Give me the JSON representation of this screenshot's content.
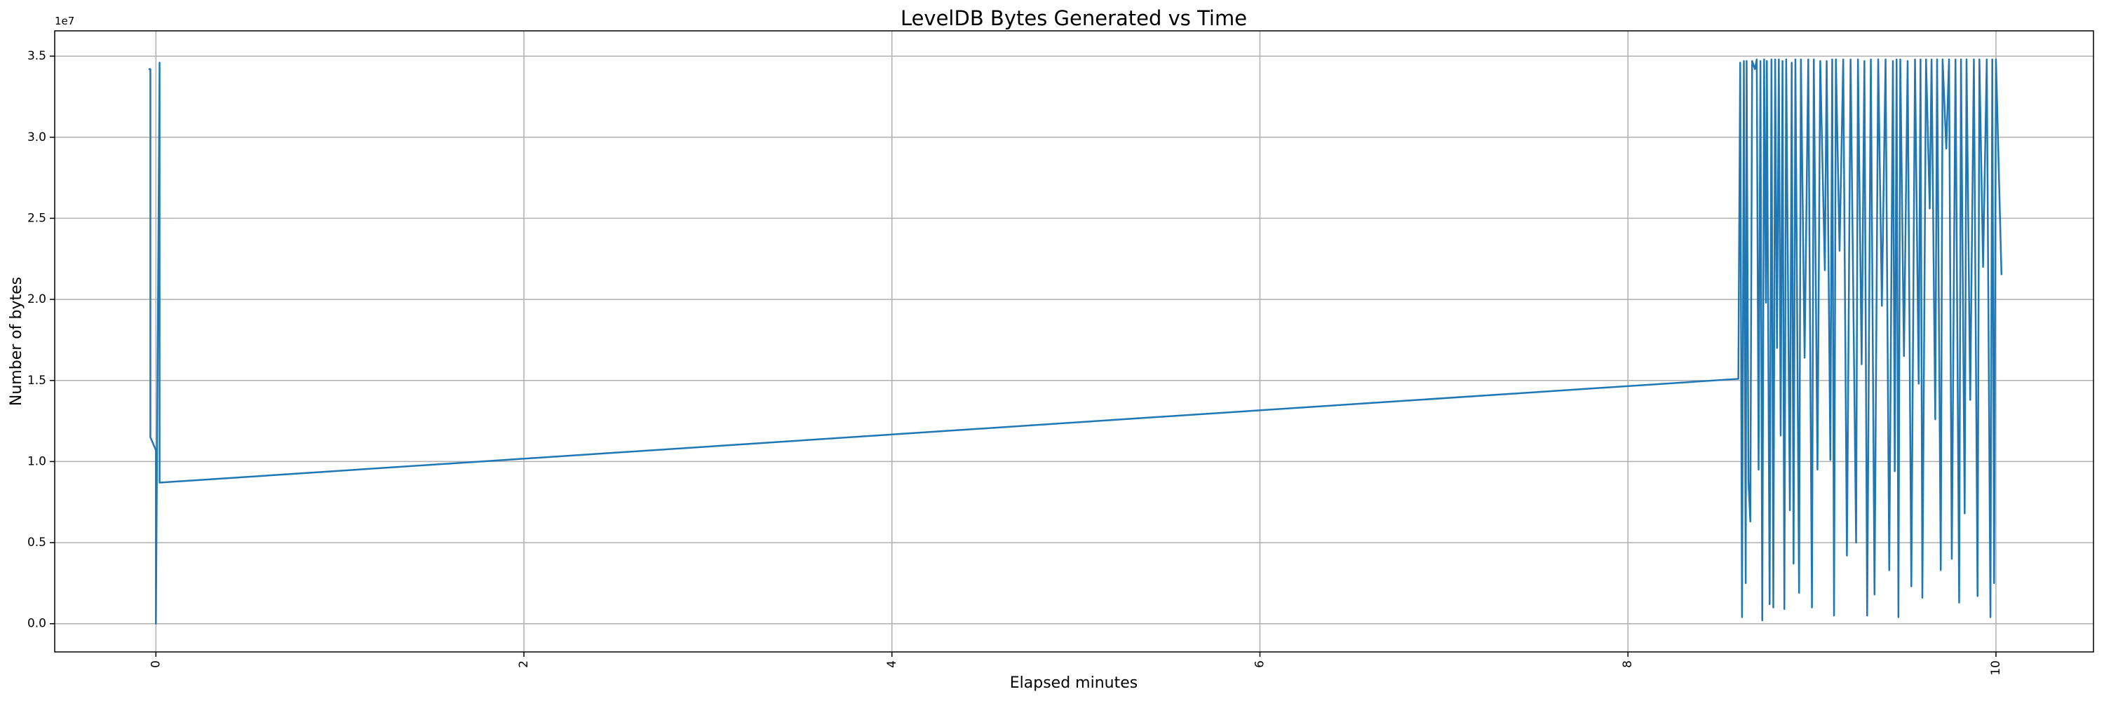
{
  "chart_data": {
    "type": "line",
    "title": "LevelDB Bytes Generated vs Time",
    "x_label": "Elapsed minutes",
    "y_label": "Number of bytes",
    "y_offset_label": "1e7",
    "color": "#1f77b4",
    "grid": true,
    "xlim": [
      -0.55,
      10.53
    ],
    "ylim": [
      -1740000,
      36560000
    ],
    "xticks": [
      0,
      2,
      4,
      6,
      8,
      10
    ],
    "yticks": [
      {
        "value": 0,
        "label": "0.0"
      },
      {
        "value": 5000000,
        "label": "0.5"
      },
      {
        "value": 10000000,
        "label": "1.0"
      },
      {
        "value": 15000000,
        "label": "1.5"
      },
      {
        "value": 20000000,
        "label": "2.0"
      },
      {
        "value": 25000000,
        "label": "2.5"
      },
      {
        "value": 30000000,
        "label": "3.0"
      },
      {
        "value": 35000000,
        "label": "3.5"
      }
    ],
    "x": [
      -0.04,
      -0.03,
      -0.03,
      0.0,
      0.0,
      0.02,
      0.02,
      8.6,
      8.61,
      8.62,
      8.63,
      8.64,
      8.645,
      8.655,
      8.665,
      8.675,
      8.69,
      8.7,
      8.71,
      8.72,
      8.73,
      8.74,
      8.75,
      8.755,
      8.77,
      8.78,
      8.79,
      8.8,
      8.81,
      8.82,
      8.83,
      8.84,
      8.85,
      8.86,
      8.88,
      8.89,
      8.9,
      8.91,
      8.93,
      8.94,
      8.96,
      8.98,
      9.0,
      9.01,
      9.03,
      9.045,
      9.07,
      9.08,
      9.1,
      9.11,
      9.12,
      9.13,
      9.15,
      9.17,
      9.19,
      9.21,
      9.24,
      9.25,
      9.27,
      9.285,
      9.3,
      9.32,
      9.34,
      9.36,
      9.38,
      9.4,
      9.42,
      9.44,
      9.45,
      9.46,
      9.47,
      9.48,
      9.5,
      9.52,
      9.54,
      9.56,
      9.58,
      9.59,
      9.6,
      9.62,
      9.64,
      9.65,
      9.67,
      9.68,
      9.7,
      9.71,
      9.73,
      9.745,
      9.76,
      9.78,
      9.8,
      9.81,
      9.83,
      9.84,
      9.86,
      9.88,
      9.9,
      9.91,
      9.93,
      9.95,
      9.97,
      9.98,
      9.99,
      10.0,
      10.03
    ],
    "values": [
      34200000,
      34200000,
      11500000,
      10700000,
      0,
      34600000,
      8700000,
      15100000,
      34600000,
      400000,
      34700000,
      2500000,
      34700000,
      8800000,
      6300000,
      34700000,
      34200000,
      34800000,
      9500000,
      34700000,
      200000,
      34800000,
      19800000,
      34700000,
      1200000,
      34800000,
      1000000,
      34800000,
      17000000,
      34800000,
      11600000,
      34700000,
      900000,
      34800000,
      7000000,
      34600000,
      3700000,
      34800000,
      1900000,
      34800000,
      16400000,
      34800000,
      1000000,
      34800000,
      9500000,
      34700000,
      21800000,
      34700000,
      10100000,
      34800000,
      500000,
      34800000,
      23000000,
      34800000,
      4200000,
      34800000,
      5000000,
      34800000,
      16000000,
      34700000,
      500000,
      34800000,
      1800000,
      34800000,
      19600000,
      34800000,
      3300000,
      34700000,
      9400000,
      34800000,
      400000,
      34800000,
      16500000,
      34700000,
      2300000,
      34800000,
      14800000,
      34800000,
      1600000,
      34800000,
      25600000,
      34800000,
      12600000,
      34800000,
      3300000,
      34800000,
      29300000,
      34800000,
      4000000,
      34800000,
      1300000,
      34800000,
      6800000,
      34800000,
      13800000,
      34800000,
      1700000,
      34800000,
      22000000,
      34800000,
      400000,
      34800000,
      2500000,
      34800000,
      21500000
    ]
  }
}
